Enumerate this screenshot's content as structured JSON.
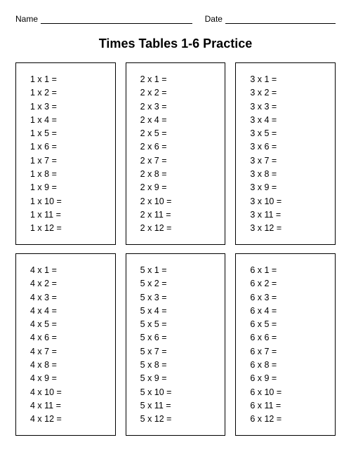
{
  "header": {
    "name_label": "Name",
    "date_label": "Date"
  },
  "title": "Times Tables 1-6 Practice",
  "layout": {
    "columns": 3,
    "rows": 2,
    "box_border_color": "#000000",
    "background_color": "#ffffff",
    "text_color": "#000000",
    "title_fontsize": 18,
    "problem_fontsize": 12.5
  },
  "tables": [
    {
      "multiplier": 1,
      "range": [
        1,
        12
      ],
      "problems": [
        "1 x 1 =",
        "1 x 2 =",
        "1 x 3 =",
        "1 x 4 =",
        "1 x 5 =",
        "1 x 6 =",
        "1 x 7 =",
        "1 x 8 =",
        "1 x 9 =",
        "1 x 10 =",
        "1 x 11 =",
        "1 x 12 ="
      ]
    },
    {
      "multiplier": 2,
      "range": [
        1,
        12
      ],
      "problems": [
        "2 x 1 =",
        "2 x 2 =",
        "2 x 3 =",
        "2 x 4 =",
        "2 x 5 =",
        "2 x 6 =",
        "2 x 7 =",
        "2 x 8 =",
        "2 x 9 =",
        "2 x 10 =",
        "2 x 11 =",
        "2 x 12 ="
      ]
    },
    {
      "multiplier": 3,
      "range": [
        1,
        12
      ],
      "problems": [
        "3 x 1 =",
        "3 x 2 =",
        "3 x 3 =",
        "3 x 4 =",
        "3 x 5 =",
        "3 x 6 =",
        "3 x 7 =",
        "3 x 8 =",
        "3 x 9 =",
        "3 x 10 =",
        "3 x 11 =",
        "3 x 12 ="
      ]
    },
    {
      "multiplier": 4,
      "range": [
        1,
        12
      ],
      "problems": [
        "4 x 1 =",
        "4 x 2 =",
        "4 x 3 =",
        "4 x 4 =",
        "4 x 5 =",
        "4 x 6 =",
        "4 x 7 =",
        "4 x 8 =",
        "4 x 9 =",
        "4 x 10 =",
        "4 x 11 =",
        "4 x 12 ="
      ]
    },
    {
      "multiplier": 5,
      "range": [
        1,
        12
      ],
      "problems": [
        "5 x 1 =",
        "5 x 2 =",
        "5 x 3 =",
        "5 x 4 =",
        "5 x 5 =",
        "5 x 6 =",
        "5 x 7 =",
        "5 x 8 =",
        "5 x 9 =",
        "5 x 10 =",
        "5 x 11 =",
        "5 x 12 ="
      ]
    },
    {
      "multiplier": 6,
      "range": [
        1,
        12
      ],
      "problems": [
        "6 x 1 =",
        "6 x 2 =",
        "6 x 3 =",
        "6 x 4 =",
        "6 x 5 =",
        "6 x 6 =",
        "6 x 7 =",
        "6 x 8 =",
        "6 x 9 =",
        "6 x 10 =",
        "6 x 11 =",
        "6 x 12 ="
      ]
    }
  ]
}
